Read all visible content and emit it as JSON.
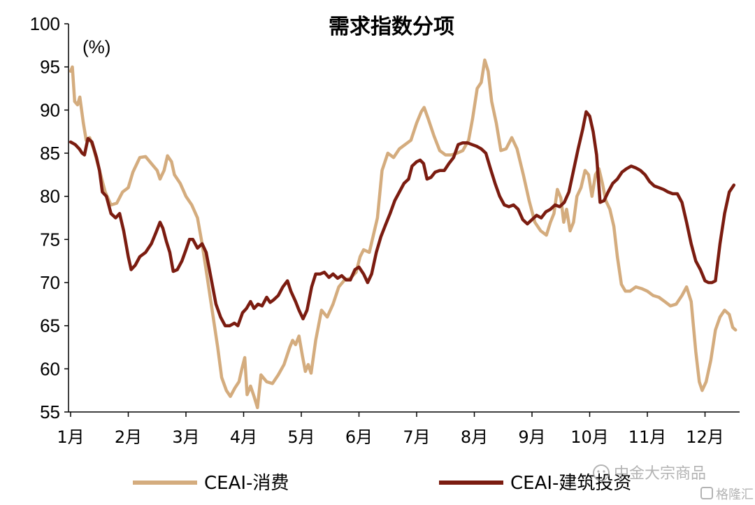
{
  "chart_data": {
    "type": "line",
    "title": "需求指数分项",
    "unit": "(%)",
    "ylim": [
      55,
      100
    ],
    "yticks": [
      55,
      60,
      65,
      70,
      75,
      80,
      85,
      90,
      95,
      100
    ],
    "xlim": [
      0,
      11.55
    ],
    "month_labels": [
      "1月",
      "2月",
      "3月",
      "4月",
      "5月",
      "6月",
      "7月",
      "8月",
      "9月",
      "10月",
      "11月",
      "12月"
    ],
    "legend_position": "bottom",
    "series": [
      {
        "name": "CEAI-消费",
        "color": "#D4AC7E",
        "points": [
          [
            0.0,
            94.5
          ],
          [
            0.03,
            95.0
          ],
          [
            0.07,
            91.0
          ],
          [
            0.12,
            90.6
          ],
          [
            0.16,
            91.5
          ],
          [
            0.22,
            88.5
          ],
          [
            0.27,
            86.5
          ],
          [
            0.33,
            86.8
          ],
          [
            0.4,
            85.5
          ],
          [
            0.5,
            83.0
          ],
          [
            0.6,
            80.5
          ],
          [
            0.7,
            79.0
          ],
          [
            0.8,
            79.2
          ],
          [
            0.9,
            80.5
          ],
          [
            1.0,
            81.0
          ],
          [
            1.08,
            82.8
          ],
          [
            1.2,
            84.5
          ],
          [
            1.3,
            84.6
          ],
          [
            1.4,
            83.8
          ],
          [
            1.5,
            83.0
          ],
          [
            1.55,
            82.0
          ],
          [
            1.62,
            83.0
          ],
          [
            1.68,
            84.7
          ],
          [
            1.75,
            84.0
          ],
          [
            1.8,
            82.5
          ],
          [
            1.9,
            81.5
          ],
          [
            2.0,
            80.0
          ],
          [
            2.1,
            79.0
          ],
          [
            2.2,
            77.5
          ],
          [
            2.28,
            74.5
          ],
          [
            2.36,
            71.0
          ],
          [
            2.45,
            67.0
          ],
          [
            2.55,
            62.5
          ],
          [
            2.62,
            59.0
          ],
          [
            2.7,
            57.5
          ],
          [
            2.77,
            56.8
          ],
          [
            2.85,
            57.8
          ],
          [
            2.92,
            58.5
          ],
          [
            2.97,
            60.0
          ],
          [
            3.02,
            61.3
          ],
          [
            3.06,
            57.0
          ],
          [
            3.12,
            58.0
          ],
          [
            3.18,
            56.8
          ],
          [
            3.24,
            55.5
          ],
          [
            3.3,
            59.3
          ],
          [
            3.4,
            58.5
          ],
          [
            3.5,
            58.3
          ],
          [
            3.6,
            59.3
          ],
          [
            3.7,
            60.5
          ],
          [
            3.8,
            62.5
          ],
          [
            3.85,
            63.3
          ],
          [
            3.9,
            62.8
          ],
          [
            3.96,
            63.8
          ],
          [
            4.02,
            61.5
          ],
          [
            4.07,
            59.7
          ],
          [
            4.12,
            60.5
          ],
          [
            4.17,
            59.5
          ],
          [
            4.25,
            63.3
          ],
          [
            4.35,
            66.8
          ],
          [
            4.45,
            66.0
          ],
          [
            4.55,
            67.5
          ],
          [
            4.65,
            69.5
          ],
          [
            4.75,
            70.3
          ],
          [
            4.85,
            70.5
          ],
          [
            4.95,
            71.2
          ],
          [
            5.02,
            73.0
          ],
          [
            5.08,
            73.8
          ],
          [
            5.18,
            73.5
          ],
          [
            5.25,
            75.5
          ],
          [
            5.32,
            77.5
          ],
          [
            5.4,
            83.0
          ],
          [
            5.5,
            85.0
          ],
          [
            5.6,
            84.5
          ],
          [
            5.7,
            85.5
          ],
          [
            5.8,
            86.0
          ],
          [
            5.9,
            86.5
          ],
          [
            6.0,
            88.5
          ],
          [
            6.08,
            89.8
          ],
          [
            6.13,
            90.3
          ],
          [
            6.2,
            89.0
          ],
          [
            6.3,
            87.0
          ],
          [
            6.4,
            85.3
          ],
          [
            6.5,
            84.8
          ],
          [
            6.6,
            84.8
          ],
          [
            6.7,
            85.0
          ],
          [
            6.8,
            85.3
          ],
          [
            6.9,
            86.5
          ],
          [
            6.97,
            89.0
          ],
          [
            7.05,
            92.5
          ],
          [
            7.12,
            93.2
          ],
          [
            7.18,
            95.8
          ],
          [
            7.24,
            94.5
          ],
          [
            7.3,
            91.0
          ],
          [
            7.38,
            88.5
          ],
          [
            7.46,
            85.3
          ],
          [
            7.55,
            85.5
          ],
          [
            7.65,
            86.8
          ],
          [
            7.74,
            85.5
          ],
          [
            7.85,
            82.5
          ],
          [
            7.95,
            79.5
          ],
          [
            8.05,
            77.0
          ],
          [
            8.15,
            76.0
          ],
          [
            8.25,
            75.5
          ],
          [
            8.32,
            77.0
          ],
          [
            8.38,
            78.0
          ],
          [
            8.44,
            80.8
          ],
          [
            8.5,
            79.8
          ],
          [
            8.55,
            77.0
          ],
          [
            8.6,
            78.5
          ],
          [
            8.66,
            76.0
          ],
          [
            8.72,
            77.0
          ],
          [
            8.78,
            80.0
          ],
          [
            8.85,
            81.0
          ],
          [
            8.92,
            83.0
          ],
          [
            8.98,
            82.5
          ],
          [
            9.04,
            80.0
          ],
          [
            9.1,
            82.5
          ],
          [
            9.16,
            83.2
          ],
          [
            9.22,
            81.5
          ],
          [
            9.28,
            79.5
          ],
          [
            9.35,
            78.5
          ],
          [
            9.42,
            76.5
          ],
          [
            9.48,
            73.0
          ],
          [
            9.55,
            69.8
          ],
          [
            9.62,
            69.0
          ],
          [
            9.7,
            69.0
          ],
          [
            9.8,
            69.5
          ],
          [
            9.9,
            69.3
          ],
          [
            10.0,
            69.0
          ],
          [
            10.1,
            68.5
          ],
          [
            10.2,
            68.3
          ],
          [
            10.3,
            67.8
          ],
          [
            10.4,
            67.3
          ],
          [
            10.5,
            67.5
          ],
          [
            10.6,
            68.5
          ],
          [
            10.68,
            69.5
          ],
          [
            10.76,
            67.8
          ],
          [
            10.84,
            62.0
          ],
          [
            10.9,
            58.5
          ],
          [
            10.95,
            57.5
          ],
          [
            11.02,
            58.5
          ],
          [
            11.1,
            61.0
          ],
          [
            11.18,
            64.5
          ],
          [
            11.26,
            66.0
          ],
          [
            11.34,
            66.8
          ],
          [
            11.42,
            66.3
          ],
          [
            11.48,
            64.8
          ],
          [
            11.53,
            64.5
          ]
        ]
      },
      {
        "name": "CEAI-建筑投资",
        "color": "#7B1C10",
        "points": [
          [
            0.0,
            86.3
          ],
          [
            0.08,
            86.0
          ],
          [
            0.15,
            85.5
          ],
          [
            0.2,
            85.0
          ],
          [
            0.24,
            84.8
          ],
          [
            0.3,
            86.7
          ],
          [
            0.37,
            86.3
          ],
          [
            0.45,
            84.5
          ],
          [
            0.5,
            83.0
          ],
          [
            0.55,
            80.5
          ],
          [
            0.62,
            80.0
          ],
          [
            0.7,
            78.0
          ],
          [
            0.78,
            77.5
          ],
          [
            0.85,
            78.0
          ],
          [
            0.92,
            76.0
          ],
          [
            1.0,
            73.0
          ],
          [
            1.05,
            71.5
          ],
          [
            1.12,
            72.0
          ],
          [
            1.2,
            73.0
          ],
          [
            1.3,
            73.5
          ],
          [
            1.4,
            74.5
          ],
          [
            1.48,
            75.8
          ],
          [
            1.55,
            77.0
          ],
          [
            1.6,
            76.3
          ],
          [
            1.66,
            74.8
          ],
          [
            1.72,
            73.5
          ],
          [
            1.78,
            71.3
          ],
          [
            1.85,
            71.5
          ],
          [
            1.93,
            72.5
          ],
          [
            2.0,
            73.8
          ],
          [
            2.06,
            75.0
          ],
          [
            2.12,
            75.0
          ],
          [
            2.2,
            74.0
          ],
          [
            2.28,
            74.5
          ],
          [
            2.35,
            73.5
          ],
          [
            2.45,
            70.0
          ],
          [
            2.52,
            67.5
          ],
          [
            2.6,
            66.0
          ],
          [
            2.68,
            65.0
          ],
          [
            2.76,
            65.0
          ],
          [
            2.84,
            65.3
          ],
          [
            2.9,
            65.0
          ],
          [
            2.98,
            66.5
          ],
          [
            3.05,
            67.0
          ],
          [
            3.12,
            67.8
          ],
          [
            3.18,
            67.0
          ],
          [
            3.25,
            67.5
          ],
          [
            3.32,
            67.3
          ],
          [
            3.4,
            68.3
          ],
          [
            3.46,
            67.7
          ],
          [
            3.52,
            68.0
          ],
          [
            3.6,
            68.5
          ],
          [
            3.68,
            69.5
          ],
          [
            3.76,
            70.2
          ],
          [
            3.82,
            69.0
          ],
          [
            3.9,
            67.8
          ],
          [
            3.96,
            66.8
          ],
          [
            4.03,
            65.8
          ],
          [
            4.1,
            66.8
          ],
          [
            4.18,
            69.5
          ],
          [
            4.25,
            71.0
          ],
          [
            4.33,
            71.0
          ],
          [
            4.4,
            71.2
          ],
          [
            4.48,
            70.6
          ],
          [
            4.55,
            71.0
          ],
          [
            4.63,
            70.5
          ],
          [
            4.7,
            70.8
          ],
          [
            4.78,
            70.3
          ],
          [
            4.85,
            70.3
          ],
          [
            4.93,
            71.5
          ],
          [
            5.0,
            71.8
          ],
          [
            5.08,
            71.0
          ],
          [
            5.15,
            70.0
          ],
          [
            5.22,
            71.0
          ],
          [
            5.3,
            73.5
          ],
          [
            5.38,
            75.3
          ],
          [
            5.46,
            76.7
          ],
          [
            5.54,
            78.0
          ],
          [
            5.62,
            79.5
          ],
          [
            5.7,
            80.5
          ],
          [
            5.78,
            81.5
          ],
          [
            5.86,
            82.0
          ],
          [
            5.92,
            83.5
          ],
          [
            6.0,
            84.0
          ],
          [
            6.06,
            84.2
          ],
          [
            6.12,
            83.8
          ],
          [
            6.18,
            82.0
          ],
          [
            6.25,
            82.2
          ],
          [
            6.32,
            82.8
          ],
          [
            6.4,
            83.0
          ],
          [
            6.48,
            83.0
          ],
          [
            6.56,
            83.8
          ],
          [
            6.64,
            84.5
          ],
          [
            6.72,
            86.0
          ],
          [
            6.8,
            86.2
          ],
          [
            6.88,
            86.2
          ],
          [
            6.96,
            86.0
          ],
          [
            7.04,
            85.8
          ],
          [
            7.12,
            85.5
          ],
          [
            7.2,
            85.0
          ],
          [
            7.28,
            83.2
          ],
          [
            7.36,
            81.5
          ],
          [
            7.44,
            80.0
          ],
          [
            7.52,
            79.0
          ],
          [
            7.6,
            78.8
          ],
          [
            7.68,
            79.0
          ],
          [
            7.76,
            78.5
          ],
          [
            7.84,
            77.3
          ],
          [
            7.92,
            76.8
          ],
          [
            8.0,
            77.3
          ],
          [
            8.08,
            77.8
          ],
          [
            8.16,
            77.5
          ],
          [
            8.24,
            78.2
          ],
          [
            8.32,
            78.5
          ],
          [
            8.4,
            79.0
          ],
          [
            8.48,
            78.8
          ],
          [
            8.56,
            79.3
          ],
          [
            8.64,
            80.5
          ],
          [
            8.72,
            83.0
          ],
          [
            8.8,
            85.5
          ],
          [
            8.88,
            87.8
          ],
          [
            8.94,
            89.8
          ],
          [
            9.0,
            89.3
          ],
          [
            9.06,
            87.5
          ],
          [
            9.12,
            84.8
          ],
          [
            9.18,
            79.3
          ],
          [
            9.25,
            79.5
          ],
          [
            9.32,
            80.5
          ],
          [
            9.4,
            81.5
          ],
          [
            9.48,
            82.0
          ],
          [
            9.56,
            82.8
          ],
          [
            9.64,
            83.2
          ],
          [
            9.72,
            83.5
          ],
          [
            9.8,
            83.3
          ],
          [
            9.88,
            83.0
          ],
          [
            9.96,
            82.5
          ],
          [
            10.04,
            81.7
          ],
          [
            10.12,
            81.2
          ],
          [
            10.2,
            81.0
          ],
          [
            10.28,
            80.8
          ],
          [
            10.36,
            80.5
          ],
          [
            10.44,
            80.3
          ],
          [
            10.52,
            80.3
          ],
          [
            10.6,
            79.3
          ],
          [
            10.68,
            77.0
          ],
          [
            10.76,
            74.5
          ],
          [
            10.84,
            72.5
          ],
          [
            10.92,
            71.5
          ],
          [
            11.0,
            70.2
          ],
          [
            11.06,
            70.0
          ],
          [
            11.12,
            70.0
          ],
          [
            11.18,
            70.2
          ],
          [
            11.26,
            74.5
          ],
          [
            11.34,
            78.0
          ],
          [
            11.42,
            80.5
          ],
          [
            11.5,
            81.3
          ]
        ]
      }
    ]
  },
  "watermark": {
    "source": "中金大宗商品",
    "brand": "格隆汇"
  }
}
